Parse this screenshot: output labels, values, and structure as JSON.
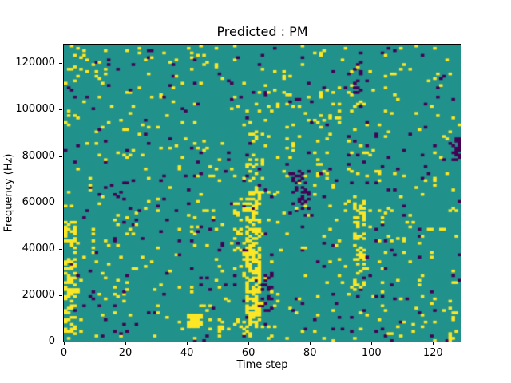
{
  "chart_data": {
    "type": "heatmap",
    "title": "Predicted : PM",
    "xlabel": "Time step",
    "ylabel": "Frequency (Hz)",
    "x_max": 129,
    "y_max": 128000,
    "grid": {
      "cols": 129,
      "rows": 128
    },
    "x_ticks": [
      0,
      20,
      40,
      60,
      80,
      100,
      120
    ],
    "y_ticks": [
      0,
      20000,
      40000,
      60000,
      80000,
      100000,
      120000
    ],
    "legend": "none",
    "colors": {
      "background_mid": "#21918c",
      "high": "#fde725",
      "low": "#440154",
      "figure_background": "#ffffff",
      "axis": "#000000"
    },
    "value_levels": {
      "low": -1,
      "mid": 0,
      "high": 1
    },
    "noise": {
      "seed": 13,
      "p_yellow": 0.035,
      "p_purple": 0.018
    },
    "clusters": [
      {
        "x0": 0,
        "x1": 4,
        "y0": 4000,
        "y1": 52000,
        "color": "yellow",
        "density": 0.38
      },
      {
        "x0": 2,
        "x1": 10,
        "y0": 108000,
        "y1": 128000,
        "color": "yellow",
        "density": 0.12
      },
      {
        "x0": 40,
        "x1": 45,
        "y0": 6000,
        "y1": 12000,
        "color": "yellow",
        "density": 0.85
      },
      {
        "x0": 50,
        "x1": 60,
        "y0": 4000,
        "y1": 10000,
        "color": "yellow",
        "density": 0.3
      },
      {
        "x0": 55,
        "x1": 59,
        "y0": 28000,
        "y1": 62000,
        "color": "yellow",
        "density": 0.22
      },
      {
        "x0": 59,
        "x1": 64,
        "y0": 5000,
        "y1": 66000,
        "color": "yellow",
        "density": 0.5
      },
      {
        "x0": 60,
        "x1": 63,
        "y0": 66000,
        "y1": 96000,
        "color": "yellow",
        "density": 0.18
      },
      {
        "x0": 64,
        "x1": 68,
        "y0": 12000,
        "y1": 30000,
        "color": "purple",
        "density": 0.3
      },
      {
        "x0": 74,
        "x1": 80,
        "y0": 54000,
        "y1": 74000,
        "color": "purple",
        "density": 0.22
      },
      {
        "x0": 94,
        "x1": 98,
        "y0": 22000,
        "y1": 62000,
        "color": "yellow",
        "density": 0.35
      },
      {
        "x0": 94,
        "x1": 97,
        "y0": 100000,
        "y1": 122000,
        "color": "purple",
        "density": 0.2
      },
      {
        "x0": 125,
        "x1": 129,
        "y0": 0,
        "y1": 5000,
        "color": "yellow",
        "density": 0.3
      },
      {
        "x0": 126,
        "x1": 129,
        "y0": 78000,
        "y1": 88000,
        "color": "purple",
        "density": 0.55
      }
    ]
  }
}
